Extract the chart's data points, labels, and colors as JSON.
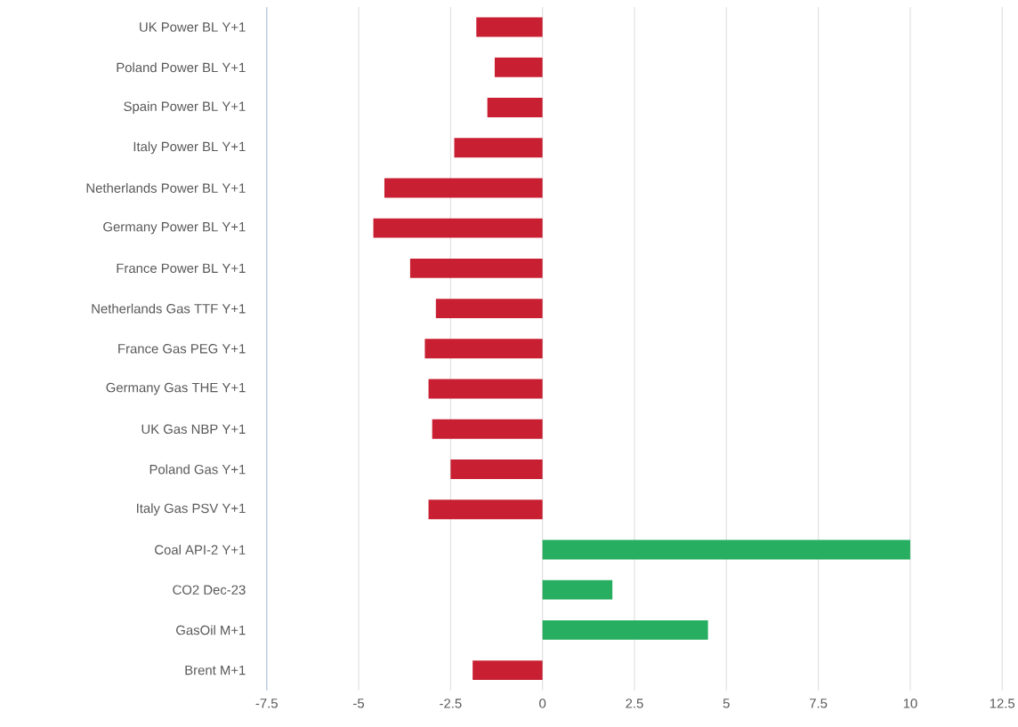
{
  "chart_data": {
    "type": "bar",
    "orientation": "horizontal",
    "categories": [
      "UK Power BL Y+1",
      "Poland Power BL Y+1",
      "Spain Power BL Y+1",
      "Italy Power BL Y+1",
      "Netherlands Power BL Y+1",
      "Germany Power BL Y+1",
      "France Power BL Y+1",
      "Netherlands Gas TTF Y+1",
      "France Gas PEG Y+1",
      "Germany Gas THE Y+1",
      "UK Gas NBP Y+1",
      "Poland Gas Y+1",
      "Italy Gas PSV Y+1",
      "Coal API-2 Y+1",
      "CO2 Dec-23",
      "GasOil M+1",
      "Brent M+1"
    ],
    "values": [
      -1.8,
      -1.3,
      -1.5,
      -2.4,
      -4.3,
      -4.6,
      -3.6,
      -2.9,
      -3.2,
      -3.1,
      -3.0,
      -2.5,
      -3.1,
      10.0,
      1.9,
      4.5,
      -1.9
    ],
    "colors": [
      "#c82032",
      "#c82032",
      "#c82032",
      "#c82032",
      "#c82032",
      "#c82032",
      "#c82032",
      "#c82032",
      "#c82032",
      "#c82032",
      "#c82032",
      "#c82032",
      "#c82032",
      "#27ae60",
      "#27ae60",
      "#27ae60",
      "#c82032"
    ],
    "xlim": [
      -7.5,
      12.5
    ],
    "xticks": [
      -7.5,
      -5,
      -2.5,
      0,
      2.5,
      5,
      7.5,
      10,
      12.5
    ],
    "grid": "x"
  }
}
